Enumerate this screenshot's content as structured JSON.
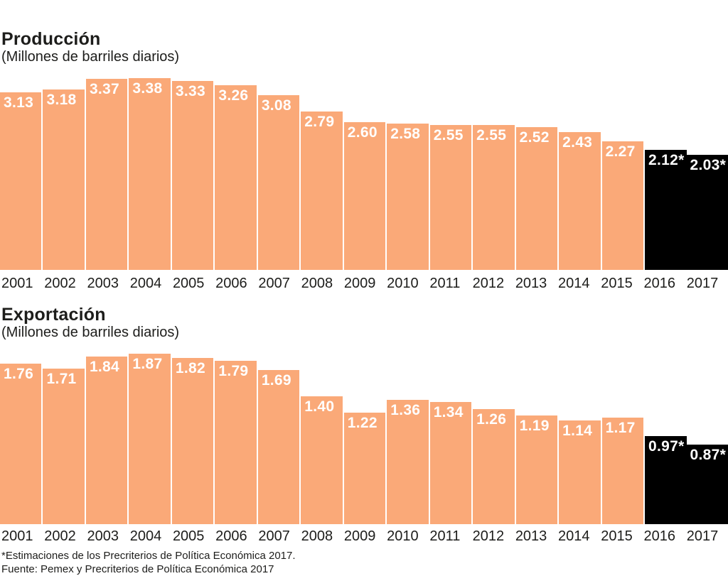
{
  "chart_data": [
    {
      "type": "bar",
      "title": "Producción",
      "subtitle": "(Millones de barriles diarios)",
      "categories": [
        "2001",
        "2002",
        "2003",
        "2004",
        "2005",
        "2006",
        "2007",
        "2008",
        "2009",
        "2010",
        "2011",
        "2012",
        "2013",
        "2014",
        "2015",
        "2016",
        "2017"
      ],
      "values": [
        3.13,
        3.18,
        3.37,
        3.38,
        3.33,
        3.26,
        3.08,
        2.79,
        2.6,
        2.58,
        2.55,
        2.55,
        2.52,
        2.43,
        2.27,
        2.12,
        2.03
      ],
      "bar_labels": [
        "3.13",
        "3.18",
        "3.37",
        "3.38",
        "3.33",
        "3.26",
        "3.08",
        "2.79",
        "2.60",
        "2.58",
        "2.55",
        "2.55",
        "2.52",
        "2.43",
        "2.27",
        "2.12*",
        "2.03*"
      ],
      "estimated_categories": [
        "2016",
        "2017"
      ],
      "bar_color": "#FAA978",
      "estimated_bar_color": "#000000",
      "value_label_color": "#FFFFFF",
      "ylim": [
        0,
        3.38
      ],
      "grid": false,
      "legend": false,
      "value_labels_position": "inside-top"
    },
    {
      "type": "bar",
      "title": "Exportación",
      "subtitle": "(Millones de barriles diarios)",
      "categories": [
        "2001",
        "2002",
        "2003",
        "2004",
        "2005",
        "2006",
        "2007",
        "2008",
        "2009",
        "2010",
        "2011",
        "2012",
        "2013",
        "2014",
        "2015",
        "2016",
        "2017"
      ],
      "values": [
        1.76,
        1.71,
        1.84,
        1.87,
        1.82,
        1.79,
        1.69,
        1.4,
        1.22,
        1.36,
        1.34,
        1.26,
        1.19,
        1.14,
        1.17,
        0.97,
        0.87
      ],
      "bar_labels": [
        "1.76",
        "1.71",
        "1.84",
        "1.87",
        "1.82",
        "1.79",
        "1.69",
        "1.40",
        "1.22",
        "1.36",
        "1.34",
        "1.26",
        "1.19",
        "1.14",
        "1.17",
        "0.97*",
        "0.87*"
      ],
      "estimated_categories": [
        "2016",
        "2017"
      ],
      "bar_color": "#FAA978",
      "estimated_bar_color": "#000000",
      "value_label_color": "#FFFFFF",
      "ylim": [
        0,
        1.87
      ],
      "grid": false,
      "legend": false,
      "value_labels_position": "inside-top"
    }
  ],
  "footnotes": {
    "asterisk_note": "*Estimaciones de los Precriterios de Política Económica 2017.",
    "source": "Fuente: Pemex y Precriterios de Política Económica 2017"
  },
  "colors": {
    "bar_orange": "#FAA978",
    "bar_estimated_black": "#000000",
    "text_dark": "#1D1D1B",
    "background": "#FFFFFF"
  }
}
